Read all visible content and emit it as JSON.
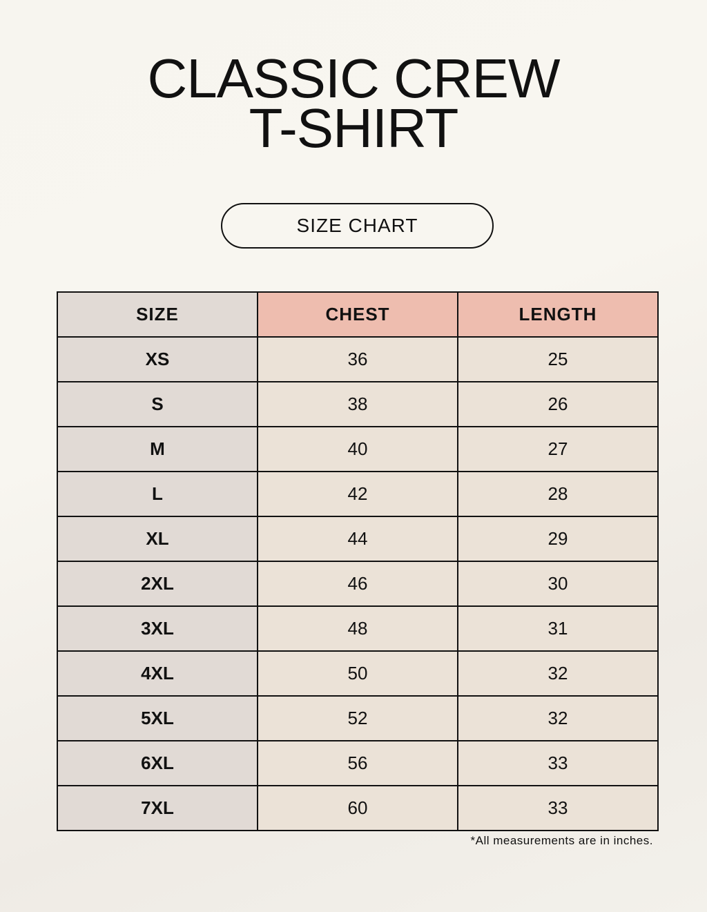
{
  "title": {
    "line1": "CLASSIC CREW",
    "line2": "T-SHIRT"
  },
  "subtitle": "SIZE CHART",
  "table": {
    "headers": [
      "SIZE",
      "CHEST",
      "LENGTH"
    ],
    "rows": [
      [
        "XS",
        "36",
        "25"
      ],
      [
        "S",
        "38",
        "26"
      ],
      [
        "M",
        "40",
        "27"
      ],
      [
        "L",
        "42",
        "28"
      ],
      [
        "XL",
        "44",
        "29"
      ],
      [
        "2XL",
        "46",
        "30"
      ],
      [
        "3XL",
        "48",
        "31"
      ],
      [
        "4XL",
        "50",
        "32"
      ],
      [
        "5XL",
        "52",
        "32"
      ],
      [
        "6XL",
        "56",
        "33"
      ],
      [
        "7XL",
        "60",
        "33"
      ]
    ]
  },
  "footnote": "*All measurements are in inches.",
  "colors": {
    "size_column": "#e1dad5",
    "measure_header": "#eebdaf",
    "measure_cells": "#ebe2d7"
  }
}
